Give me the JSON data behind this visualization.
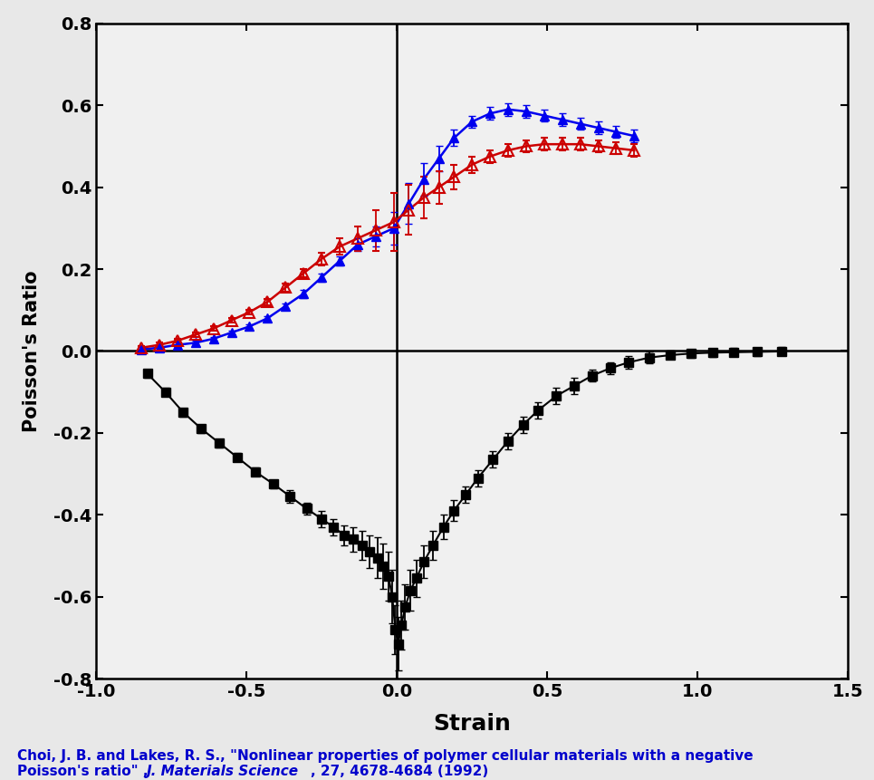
{
  "xlabel": "Strain",
  "ylabel": "Poisson's Ratio",
  "xlim": [
    -1.0,
    1.5
  ],
  "ylim": [
    -0.8,
    0.8
  ],
  "xticks": [
    -1.0,
    -0.5,
    0.0,
    0.5,
    1.0,
    1.5
  ],
  "yticks": [
    -0.8,
    -0.6,
    -0.4,
    -0.2,
    0.0,
    0.2,
    0.4,
    0.6,
    0.8
  ],
  "fig_bg_color": "#e8e8e8",
  "plot_bg_color": "#f0f0f0",
  "citation_color": "#0000cc",
  "blue_x": [
    -0.85,
    -0.79,
    -0.73,
    -0.67,
    -0.61,
    -0.55,
    -0.49,
    -0.43,
    -0.37,
    -0.31,
    -0.25,
    -0.19,
    -0.13,
    -0.07,
    -0.01,
    0.04,
    0.09,
    0.14,
    0.19,
    0.25,
    0.31,
    0.37,
    0.43,
    0.49,
    0.55,
    0.61,
    0.67,
    0.73,
    0.79
  ],
  "blue_y": [
    0.004,
    0.008,
    0.015,
    0.02,
    0.03,
    0.045,
    0.06,
    0.08,
    0.11,
    0.14,
    0.18,
    0.22,
    0.26,
    0.28,
    0.3,
    0.36,
    0.42,
    0.47,
    0.52,
    0.56,
    0.58,
    0.59,
    0.585,
    0.575,
    0.565,
    0.555,
    0.545,
    0.535,
    0.525
  ],
  "blue_yerr": [
    0.005,
    0.005,
    0.005,
    0.005,
    0.005,
    0.005,
    0.005,
    0.005,
    0.005,
    0.01,
    0.01,
    0.01,
    0.015,
    0.025,
    0.04,
    0.05,
    0.04,
    0.03,
    0.02,
    0.015,
    0.015,
    0.015,
    0.015,
    0.015,
    0.015,
    0.015,
    0.015,
    0.015,
    0.015
  ],
  "blue_color": "#0000ee",
  "red_x": [
    -0.85,
    -0.79,
    -0.73,
    -0.67,
    -0.61,
    -0.55,
    -0.49,
    -0.43,
    -0.37,
    -0.31,
    -0.25,
    -0.19,
    -0.13,
    -0.07,
    -0.01,
    0.04,
    0.09,
    0.14,
    0.19,
    0.25,
    0.31,
    0.37,
    0.43,
    0.49,
    0.55,
    0.61,
    0.67,
    0.73,
    0.79
  ],
  "red_y": [
    0.008,
    0.015,
    0.025,
    0.04,
    0.055,
    0.075,
    0.095,
    0.12,
    0.155,
    0.19,
    0.225,
    0.255,
    0.275,
    0.295,
    0.315,
    0.345,
    0.375,
    0.4,
    0.425,
    0.455,
    0.475,
    0.49,
    0.5,
    0.505,
    0.505,
    0.505,
    0.5,
    0.495,
    0.49
  ],
  "red_yerr": [
    0.005,
    0.005,
    0.005,
    0.005,
    0.005,
    0.005,
    0.005,
    0.008,
    0.01,
    0.01,
    0.015,
    0.02,
    0.03,
    0.05,
    0.07,
    0.06,
    0.05,
    0.04,
    0.03,
    0.02,
    0.015,
    0.015,
    0.015,
    0.015,
    0.015,
    0.015,
    0.015,
    0.015,
    0.015
  ],
  "red_color": "#cc0000",
  "black_x": [
    -0.83,
    -0.77,
    -0.71,
    -0.65,
    -0.59,
    -0.53,
    -0.47,
    -0.41,
    -0.355,
    -0.3,
    -0.25,
    -0.21,
    -0.175,
    -0.145,
    -0.115,
    -0.09,
    -0.065,
    -0.045,
    -0.028,
    -0.015,
    -0.005,
    0.005,
    0.015,
    0.028,
    0.045,
    0.065,
    0.09,
    0.12,
    0.155,
    0.19,
    0.23,
    0.27,
    0.32,
    0.37,
    0.42,
    0.47,
    0.53,
    0.59,
    0.65,
    0.71,
    0.77,
    0.84,
    0.91,
    0.98,
    1.05,
    1.12,
    1.2,
    1.28
  ],
  "black_y": [
    -0.055,
    -0.1,
    -0.15,
    -0.19,
    -0.225,
    -0.26,
    -0.295,
    -0.325,
    -0.355,
    -0.385,
    -0.41,
    -0.43,
    -0.45,
    -0.46,
    -0.475,
    -0.49,
    -0.505,
    -0.525,
    -0.55,
    -0.6,
    -0.68,
    -0.715,
    -0.67,
    -0.625,
    -0.585,
    -0.555,
    -0.515,
    -0.475,
    -0.43,
    -0.39,
    -0.35,
    -0.31,
    -0.265,
    -0.22,
    -0.18,
    -0.145,
    -0.11,
    -0.085,
    -0.06,
    -0.042,
    -0.028,
    -0.016,
    -0.01,
    -0.006,
    -0.004,
    -0.003,
    -0.002,
    -0.001
  ],
  "black_yerr": [
    0.01,
    0.01,
    0.01,
    0.01,
    0.01,
    0.01,
    0.01,
    0.01,
    0.015,
    0.015,
    0.02,
    0.02,
    0.025,
    0.03,
    0.035,
    0.04,
    0.05,
    0.055,
    0.06,
    0.065,
    0.06,
    0.065,
    0.06,
    0.055,
    0.05,
    0.045,
    0.04,
    0.035,
    0.03,
    0.025,
    0.02,
    0.02,
    0.02,
    0.02,
    0.02,
    0.02,
    0.02,
    0.02,
    0.015,
    0.015,
    0.015,
    0.015,
    0.01,
    0.01,
    0.01,
    0.01,
    0.01,
    0.01
  ],
  "black_color": "#000000"
}
